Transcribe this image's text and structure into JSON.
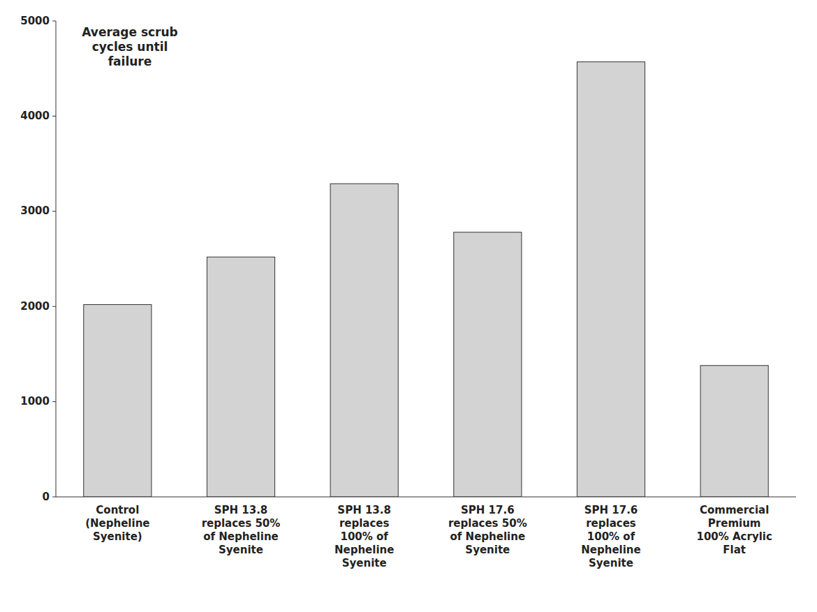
{
  "chart_data": {
    "type": "bar",
    "categories": [
      "Control\n(Nepheline\nSyenite)",
      "SPH 13.8\nreplaces 50%\nof Nepheline\nSyenite",
      "SPH 13.8\nreplaces\n100% of\nNepheline\nSyenite",
      "SPH 17.6\nreplaces 50%\nof Nepheline\nSyenite",
      "SPH 17.6\nreplaces\n100% of\nNepheline\nSyenite",
      "Commercial\nPremium\n100% Acrylic\nFlat"
    ],
    "values": [
      2020,
      2520,
      3290,
      2780,
      4570,
      1380
    ],
    "color": "#d3d3d3",
    "ylabel": "Average scrub\ncycles until\nfailure",
    "ylim": [
      0,
      5000
    ],
    "yticks": [
      0,
      1000,
      2000,
      3000,
      4000,
      5000
    ],
    "grid": false
  }
}
